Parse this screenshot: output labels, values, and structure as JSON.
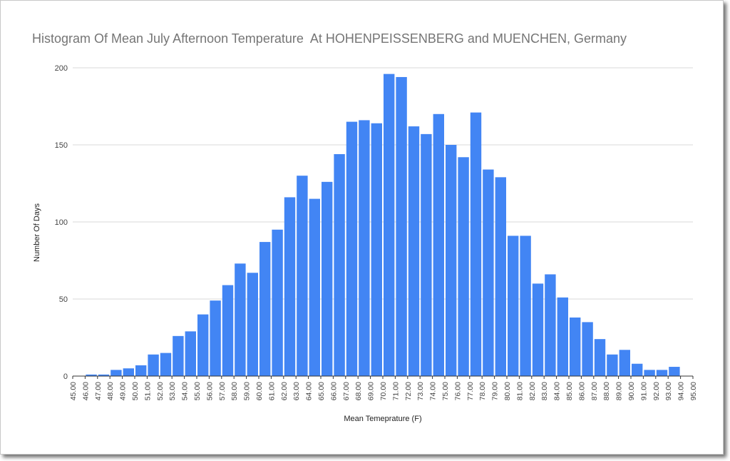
{
  "chart_data": {
    "type": "bar",
    "title": "Histogram Of Mean July Afternoon Temperature  At HOHENPEISSENBERG and MUENCHEN, Germany",
    "xlabel": "Mean Temeprature (F)",
    "ylabel": "Number Of Days",
    "ylim": [
      0,
      200
    ],
    "y_ticks": [
      "0",
      "50",
      "100",
      "150",
      "200"
    ],
    "grid": true,
    "bar_color": "#4285f4",
    "x_tick_labels": [
      "45.00",
      "46.00",
      "47.00",
      "48.00",
      "49.00",
      "50.00",
      "51.00",
      "52.00",
      "53.00",
      "54.00",
      "55.00",
      "56.00",
      "57.00",
      "58.00",
      "59.00",
      "60.00",
      "61.00",
      "62.00",
      "63.00",
      "64.00",
      "65.00",
      "66.00",
      "67.00",
      "68.00",
      "69.00",
      "70.00",
      "71.00",
      "72.00",
      "73.00",
      "74.00",
      "75.00",
      "76.00",
      "77.00",
      "78.00",
      "79.00",
      "80.00",
      "81.00",
      "82.00",
      "83.00",
      "84.00",
      "85.00",
      "86.00",
      "87.00",
      "88.00",
      "89.00",
      "90.00",
      "91.00",
      "92.00",
      "93.00",
      "94.00",
      "95.00"
    ],
    "values": [
      0,
      1,
      1,
      4,
      5,
      7,
      14,
      15,
      26,
      29,
      40,
      49,
      59,
      73,
      67,
      87,
      95,
      116,
      130,
      115,
      126,
      144,
      165,
      166,
      164,
      196,
      194,
      162,
      157,
      170,
      150,
      142,
      171,
      134,
      129,
      91,
      91,
      60,
      66,
      51,
      38,
      35,
      24,
      14,
      17,
      8,
      4,
      4,
      6,
      0
    ]
  }
}
